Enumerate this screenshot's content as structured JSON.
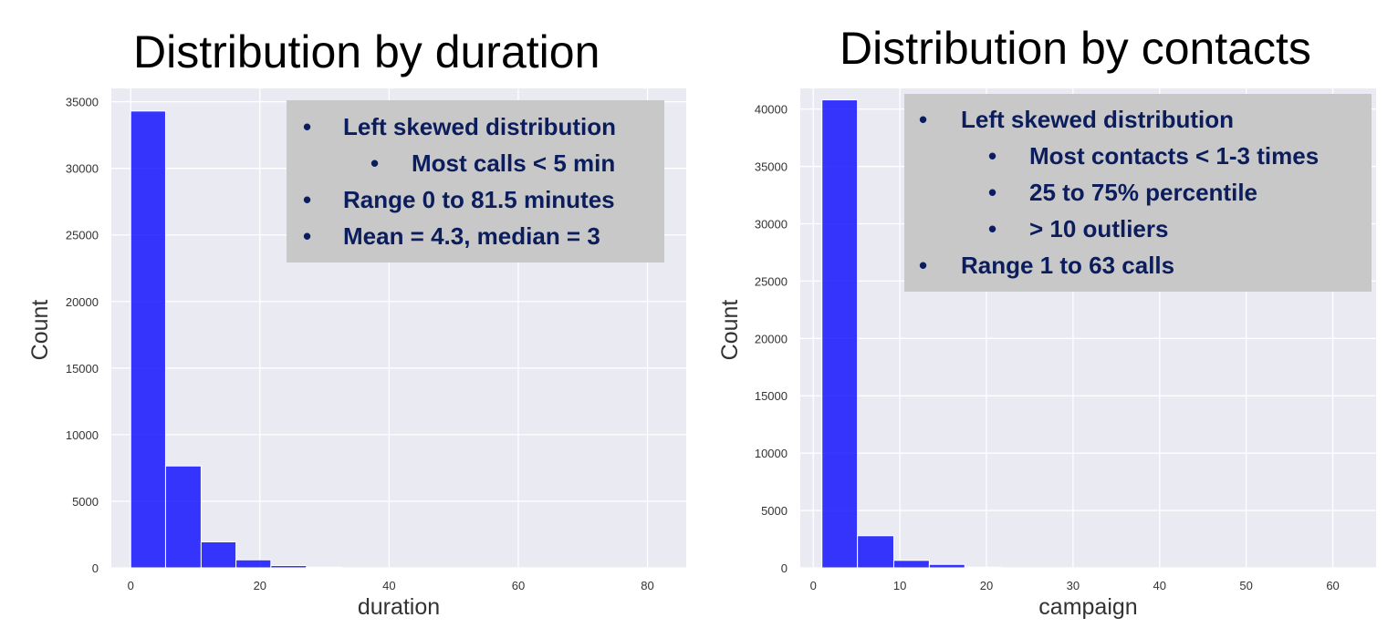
{
  "chart_data": [
    {
      "type": "bar",
      "title": "Distribution by duration",
      "xlabel": "duration",
      "ylabel": "Count",
      "xlim": [
        -3,
        86
      ],
      "ylim": [
        0,
        36000
      ],
      "xticks": [
        0,
        20,
        40,
        60,
        80
      ],
      "yticks": [
        0,
        5000,
        10000,
        15000,
        20000,
        25000,
        30000,
        35000
      ],
      "bin_edges": [
        0,
        5.4,
        10.9,
        16.3,
        21.7,
        27.2,
        32.6
      ],
      "values": [
        34300,
        7650,
        1950,
        600,
        170,
        50
      ],
      "bar_color": "#0000ff",
      "grid": true,
      "annotation": {
        "lines": [
          {
            "level": 1,
            "text": "Left skewed distribution"
          },
          {
            "level": 2,
            "text": "Most calls < 5 min"
          },
          {
            "level": 1,
            "text": "Range 0 to 81.5 minutes"
          },
          {
            "level": 1,
            "text": "Mean = 4.3, median = 3"
          }
        ]
      }
    },
    {
      "type": "bar",
      "title": "Distribution by contacts",
      "xlabel": "campaign",
      "ylabel": "Count",
      "xlim": [
        -1.5,
        65
      ],
      "ylim": [
        0,
        41800
      ],
      "xticks": [
        0,
        10,
        20,
        30,
        40,
        50,
        60
      ],
      "yticks": [
        0,
        5000,
        10000,
        15000,
        20000,
        25000,
        30000,
        35000,
        40000
      ],
      "bin_edges": [
        1,
        5.1,
        9.3,
        13.4,
        17.5,
        21.7
      ],
      "values": [
        40800,
        2800,
        650,
        300,
        60
      ],
      "bar_color": "#0000ff",
      "grid": true,
      "annotation": {
        "lines": [
          {
            "level": 1,
            "text": "Left skewed distribution"
          },
          {
            "level": 2,
            "text": "Most contacts < 1-3 times"
          },
          {
            "level": 2,
            "text": "25 to 75% percentile"
          },
          {
            "level": 2,
            "text": "> 10 outliers"
          },
          {
            "level": 1,
            "text": "Range 1 to 63 calls"
          }
        ]
      }
    }
  ]
}
